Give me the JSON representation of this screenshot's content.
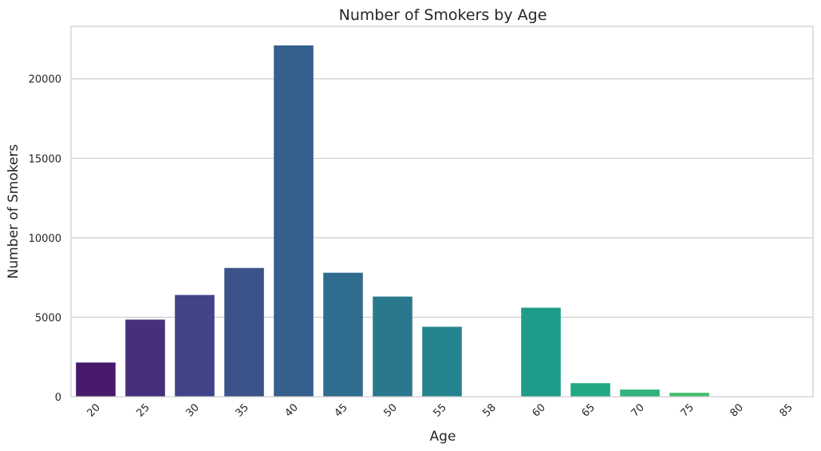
{
  "chart_data": {
    "type": "bar",
    "title": "Number of Smokers by Age",
    "xlabel": "Age",
    "ylabel": "Number of Smokers",
    "categories": [
      "20",
      "25",
      "30",
      "35",
      "40",
      "45",
      "50",
      "55",
      "58",
      "60",
      "65",
      "70",
      "75",
      "80",
      "85"
    ],
    "values": [
      2150,
      4850,
      6400,
      8100,
      22100,
      7800,
      6300,
      4400,
      10,
      5600,
      850,
      450,
      250,
      30,
      20
    ],
    "ylim": [
      0,
      23300
    ],
    "yticks": [
      0,
      5000,
      10000,
      15000,
      20000
    ],
    "grid": "horizontal",
    "colors": [
      "#481a6c",
      "#472f7d",
      "#414487",
      "#3b528b",
      "#35608d",
      "#2f6c8e",
      "#2a788e",
      "#25848e",
      "#21918c",
      "#1e9c89",
      "#22a884",
      "#2fb47c",
      "#44bf70",
      "#5ec962",
      "#7ad151"
    ]
  }
}
